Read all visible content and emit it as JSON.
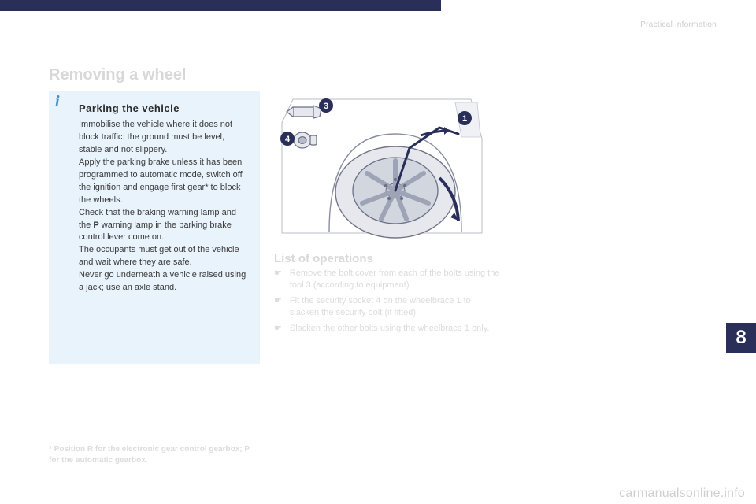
{
  "header": {
    "section_label": "Practical information"
  },
  "title": "Removing a wheel",
  "info_box": {
    "title": "Parking the vehicle",
    "body_html": "Immobilise the vehicle where it does not block traffic: the ground must be level, stable and not slippery.<br>Apply the parking brake unless it has been programmed to automatic mode, switch off the ignition and engage first gear* to block the wheels.<br>Check that the braking warning lamp and the <span class='b'>P</span> warning lamp in the parking brake control lever come on.<br>The occupants must get out of the vehicle and wait where they are safe.<br>Never go underneath a vehicle raised using a jack; use an axle stand.",
    "info_icon_color": "#4a8cc2",
    "bg_color": "#e8f3fb"
  },
  "diagram": {
    "callouts": [
      "1",
      "3",
      "4"
    ],
    "callout_bg": "#2a2f5a",
    "callout_fg": "#ffffff",
    "wheel_fill": "#d2d6de",
    "line_color": "#2a2f5a"
  },
  "operations": {
    "title": "List of operations",
    "items": [
      "Remove the bolt cover from each of the bolts using the tool 3 (according to equipment).",
      "Fit the security socket 4 on the wheelbrace 1 to slacken the security bolt (if fitted).",
      "Slacken the other bolts using the wheelbrace 1 only."
    ],
    "bullet": "☛",
    "text_color": "#dcdcdc"
  },
  "chapter": {
    "number": "8",
    "bg": "#2a2f5a",
    "fg": "#ffffff"
  },
  "footnote": "* Position R for the electronic gear control gearbox; P for the automatic gearbox.",
  "watermark": "carmanualsonline.info"
}
